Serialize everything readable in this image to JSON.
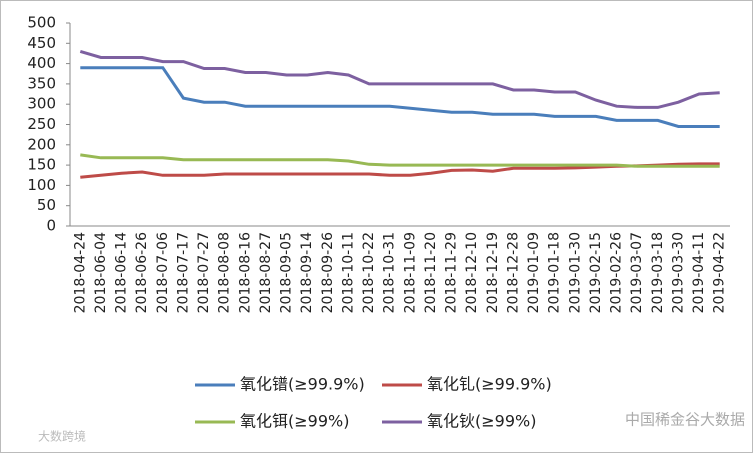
{
  "chart_data": {
    "type": "line",
    "categories": [
      "2018-04-24",
      "2018-06-04",
      "2018-06-14",
      "2018-06-26",
      "2018-07-06",
      "2018-07-17",
      "2018-07-27",
      "2018-08-08",
      "2018-08-16",
      "2018-08-27",
      "2018-09-05",
      "2018-09-14",
      "2018-09-26",
      "2018-10-11",
      "2018-10-22",
      "2018-10-31",
      "2018-11-09",
      "2018-11-20",
      "2018-11-29",
      "2018-12-10",
      "2018-12-19",
      "2018-12-28",
      "2019-01-09",
      "2019-01-18",
      "2019-01-30",
      "2019-02-15",
      "2019-02-26",
      "2019-03-07",
      "2019-03-18",
      "2019-03-30",
      "2019-04-11",
      "2019-04-22"
    ],
    "series": [
      {
        "name": "氧化镨(≥99.9%)",
        "color": "#4a7ebb",
        "values": [
          390,
          390,
          390,
          390,
          390,
          315,
          305,
          305,
          295,
          295,
          295,
          295,
          295,
          295,
          295,
          295,
          290,
          285,
          280,
          280,
          275,
          275,
          275,
          270,
          270,
          270,
          260,
          260,
          260,
          245,
          245,
          245
        ]
      },
      {
        "name": "氧化钆(≥99.9%)",
        "color": "#be4b48",
        "values": [
          120,
          125,
          130,
          133,
          125,
          125,
          125,
          128,
          128,
          128,
          128,
          128,
          128,
          128,
          128,
          125,
          125,
          130,
          137,
          138,
          135,
          142,
          142,
          142,
          143,
          145,
          147,
          148,
          150,
          152,
          153,
          153
        ]
      },
      {
        "name": "氧化铒(≥99%)",
        "color": "#98b954",
        "values": [
          175,
          168,
          168,
          168,
          168,
          163,
          163,
          163,
          163,
          163,
          163,
          163,
          163,
          160,
          152,
          150,
          150,
          150,
          150,
          150,
          150,
          150,
          150,
          150,
          150,
          150,
          150,
          147,
          147,
          147,
          147,
          147
        ]
      },
      {
        "name": "氧化钬(≥99%)",
        "color": "#7d60a0",
        "values": [
          430,
          415,
          415,
          415,
          405,
          405,
          388,
          388,
          378,
          378,
          372,
          372,
          378,
          372,
          350,
          350,
          350,
          350,
          350,
          350,
          350,
          335,
          335,
          330,
          330,
          310,
          295,
          292,
          292,
          305,
          325,
          328
        ]
      }
    ],
    "ylim": [
      0,
      500
    ],
    "yticks": [
      0,
      50,
      100,
      150,
      200,
      250,
      300,
      350,
      400,
      450,
      500
    ],
    "grid": false,
    "watermarks": [
      "大数跨境",
      "中国稀金谷大数据"
    ]
  }
}
